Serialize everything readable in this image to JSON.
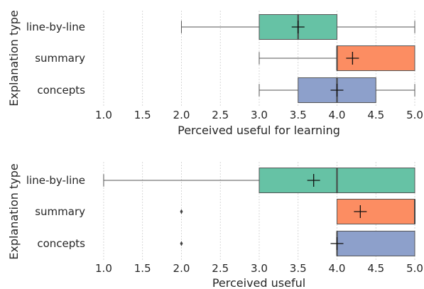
{
  "chart_data": [
    {
      "type": "box",
      "orientation": "horizontal",
      "xlabel": "Perceived useful for learning",
      "ylabel": "Explanation type",
      "xlim": [
        0.9,
        5.0
      ],
      "xticks": [
        "1.0",
        "1.5",
        "2.0",
        "2.5",
        "3.0",
        "3.5",
        "4.0",
        "4.5",
        "5.0"
      ],
      "grid": "x",
      "categories": [
        "line-by-line",
        "summary",
        "concepts"
      ],
      "boxes": [
        {
          "category": "line-by-line",
          "color": "#66c2a5",
          "whisker_low": 2.0,
          "q1": 3.0,
          "median": 3.5,
          "q3": 4.0,
          "whisker_high": 5.0,
          "mean": 3.5,
          "outliers": []
        },
        {
          "category": "summary",
          "color": "#fc8d62",
          "whisker_low": 3.0,
          "q1": 4.0,
          "median": 4.0,
          "q3": 5.0,
          "whisker_high": 5.0,
          "mean": 4.2,
          "outliers": []
        },
        {
          "category": "concepts",
          "color": "#8da0cb",
          "whisker_low": 3.0,
          "q1": 3.5,
          "median": 4.0,
          "q3": 4.5,
          "whisker_high": 5.0,
          "mean": 4.0,
          "outliers": []
        }
      ]
    },
    {
      "type": "box",
      "orientation": "horizontal",
      "xlabel": "Perceived useful",
      "ylabel": "Explanation type",
      "xlim": [
        0.9,
        5.0
      ],
      "xticks": [
        "1.0",
        "1.5",
        "2.0",
        "2.5",
        "3.0",
        "3.5",
        "4.0",
        "4.5",
        "5.0"
      ],
      "grid": "x",
      "categories": [
        "line-by-line",
        "summary",
        "concepts"
      ],
      "boxes": [
        {
          "category": "line-by-line",
          "color": "#66c2a5",
          "whisker_low": 1.0,
          "q1": 3.0,
          "median": 4.0,
          "q3": 5.0,
          "whisker_high": 5.0,
          "mean": 3.7,
          "outliers": []
        },
        {
          "category": "summary",
          "color": "#fc8d62",
          "whisker_low": 4.0,
          "q1": 4.0,
          "median": 5.0,
          "q3": 5.0,
          "whisker_high": 5.0,
          "mean": 4.3,
          "outliers": [
            2.0
          ]
        },
        {
          "category": "concepts",
          "color": "#8da0cb",
          "whisker_low": 4.0,
          "q1": 4.0,
          "median": 4.0,
          "q3": 5.0,
          "whisker_high": 5.0,
          "mean": 4.0,
          "outliers": [
            2.0
          ]
        }
      ]
    }
  ]
}
